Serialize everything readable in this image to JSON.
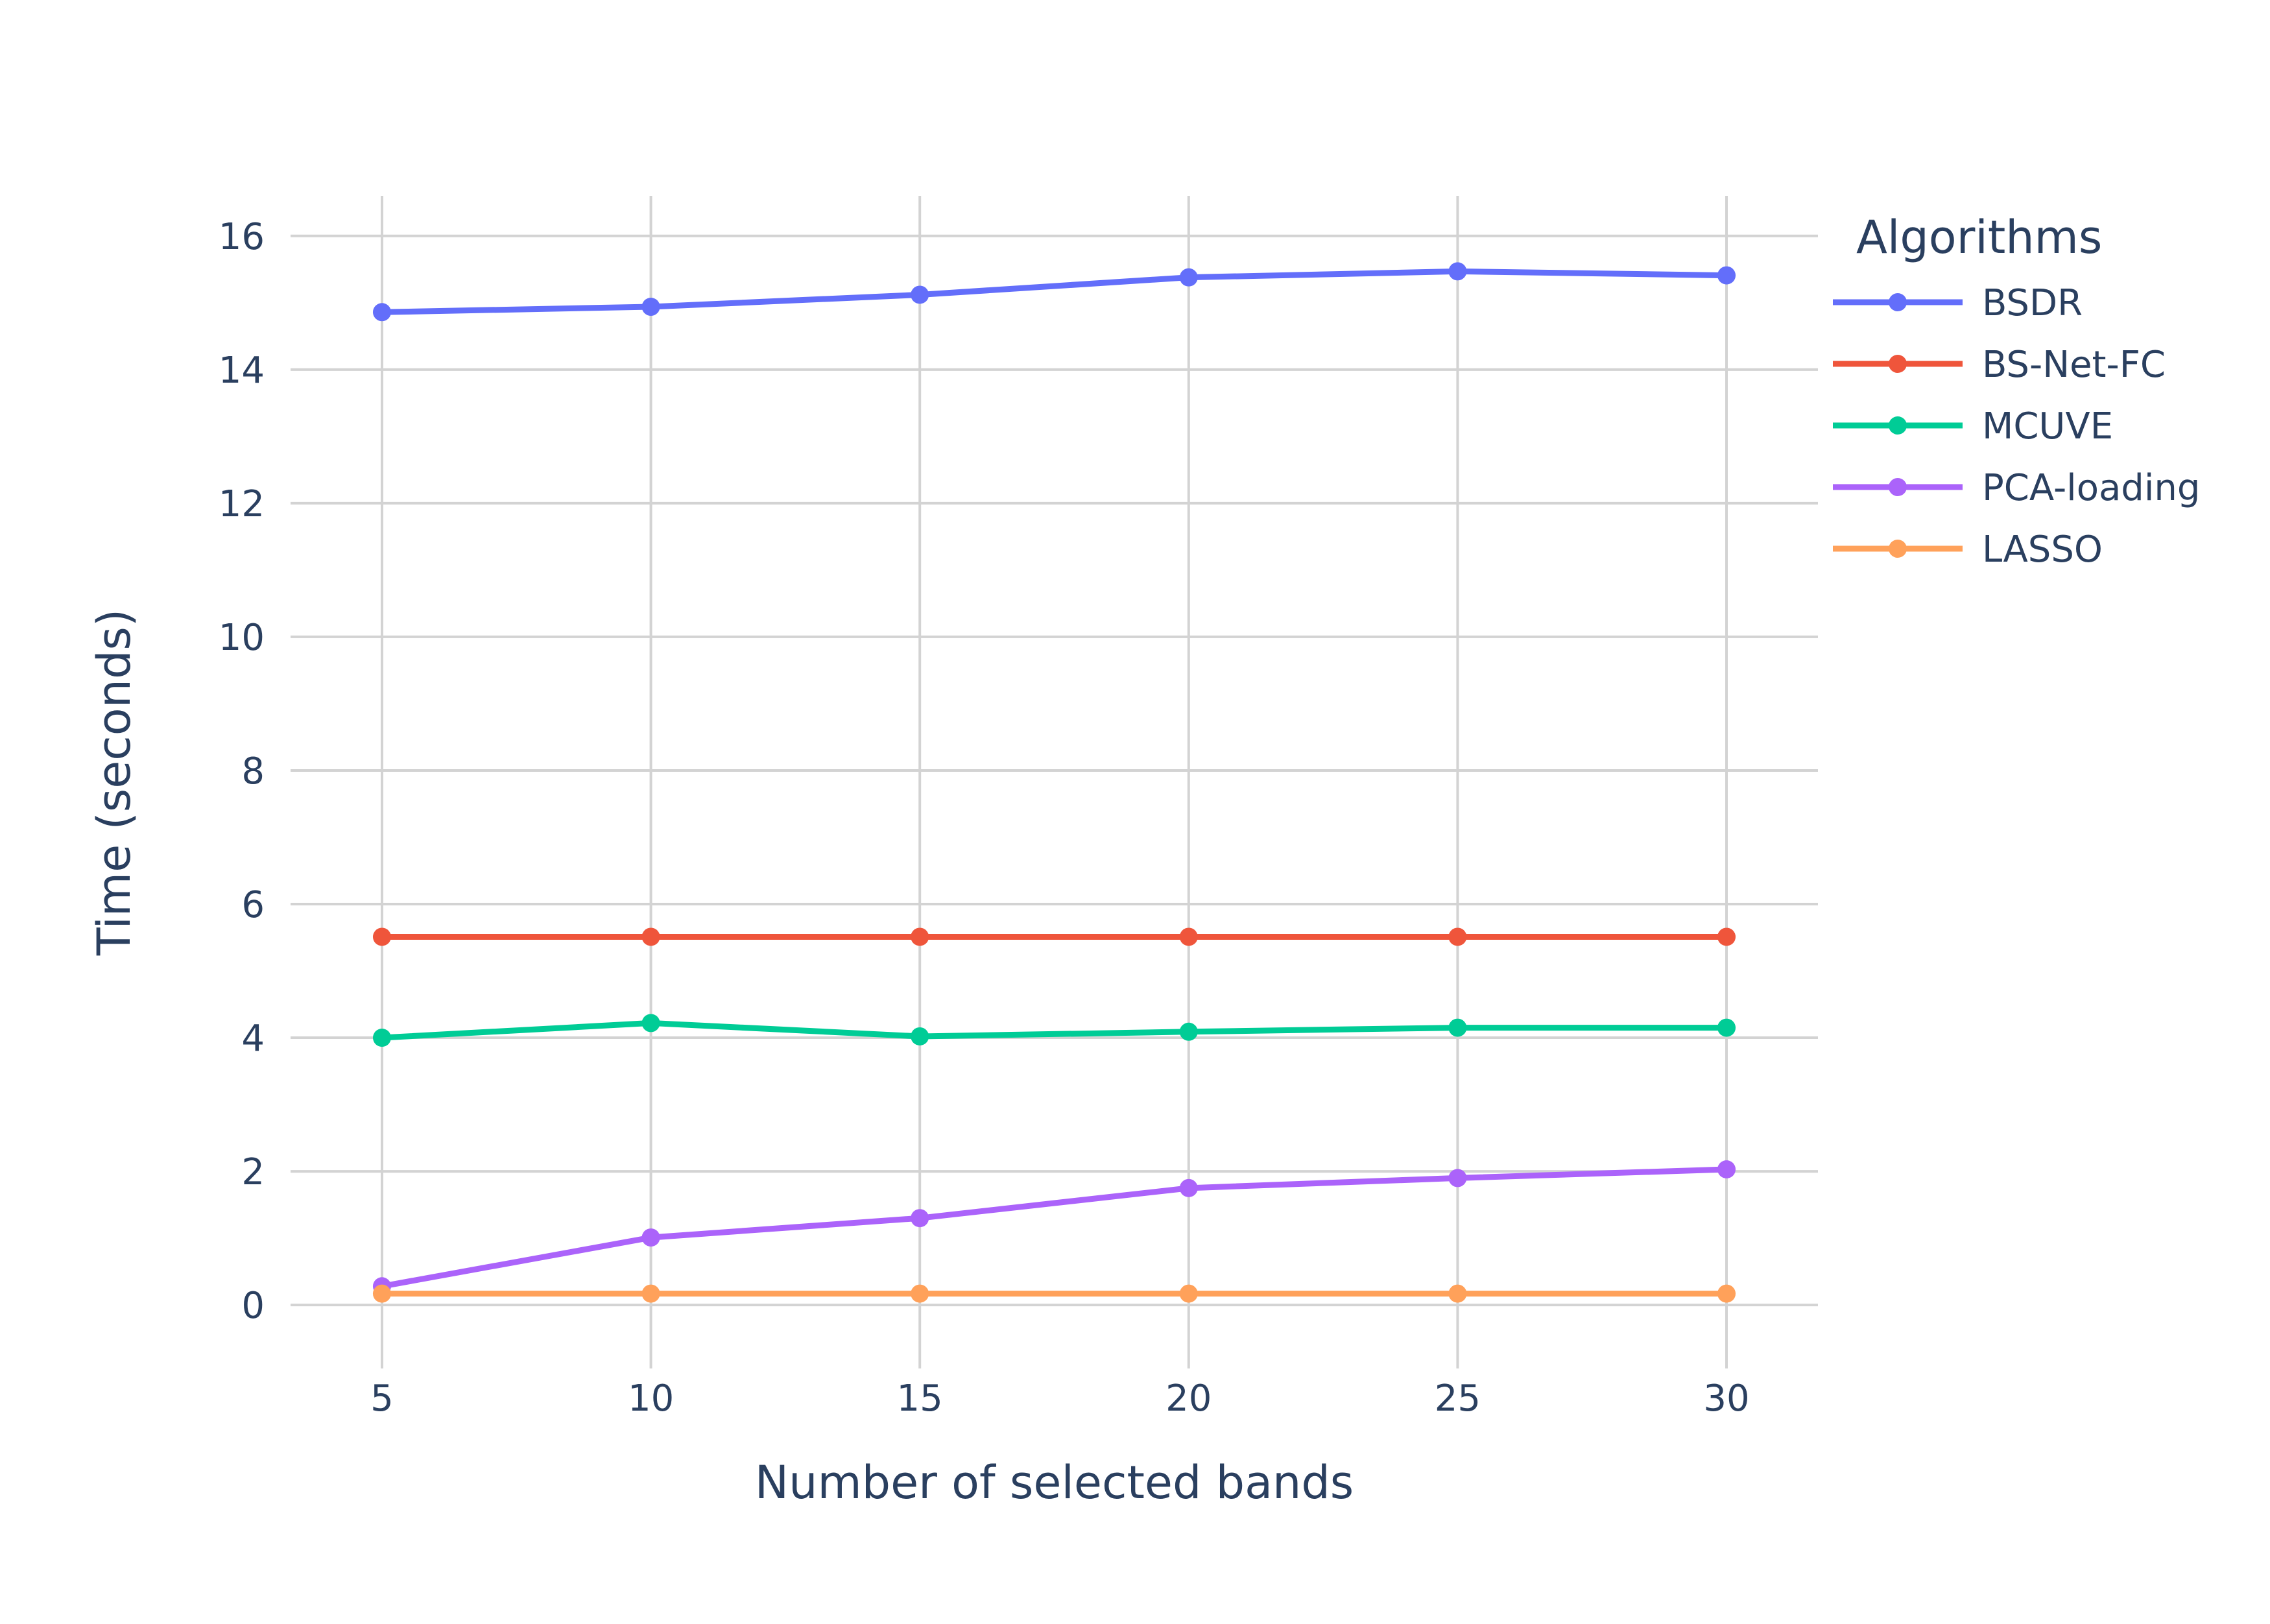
{
  "chart_data": {
    "type": "line",
    "title": "",
    "xlabel": "Number of selected bands",
    "ylabel": "Time (seconds)",
    "x": [
      5,
      10,
      15,
      20,
      25,
      30
    ],
    "xlim": [
      3.3,
      31.7
    ],
    "ylim": [
      -0.95,
      16.6
    ],
    "x_ticks": [
      5,
      10,
      15,
      20,
      25,
      30
    ],
    "y_ticks": [
      0,
      2,
      4,
      6,
      8,
      10,
      12,
      14,
      16
    ],
    "grid": true,
    "legend": {
      "title": "Algorithms",
      "placement": "top-right, outside plot"
    },
    "series": [
      {
        "name": "BSDR",
        "color": "#636efa",
        "values": [
          14.86,
          14.94,
          15.12,
          15.38,
          15.47,
          15.41
        ]
      },
      {
        "name": "BS-Net-FC",
        "color": "#ef553b",
        "values": [
          5.51,
          5.51,
          5.51,
          5.51,
          5.51,
          5.51
        ]
      },
      {
        "name": "MCUVE",
        "color": "#00cc96",
        "values": [
          4.0,
          4.22,
          4.02,
          4.09,
          4.15,
          4.15
        ]
      },
      {
        "name": "PCA-loading",
        "color": "#ab63fa",
        "values": [
          0.28,
          1.01,
          1.3,
          1.75,
          1.9,
          2.03
        ]
      },
      {
        "name": "LASSO",
        "color": "#ffa15a",
        "values": [
          0.17,
          0.17,
          0.17,
          0.17,
          0.17,
          0.17
        ]
      }
    ]
  }
}
